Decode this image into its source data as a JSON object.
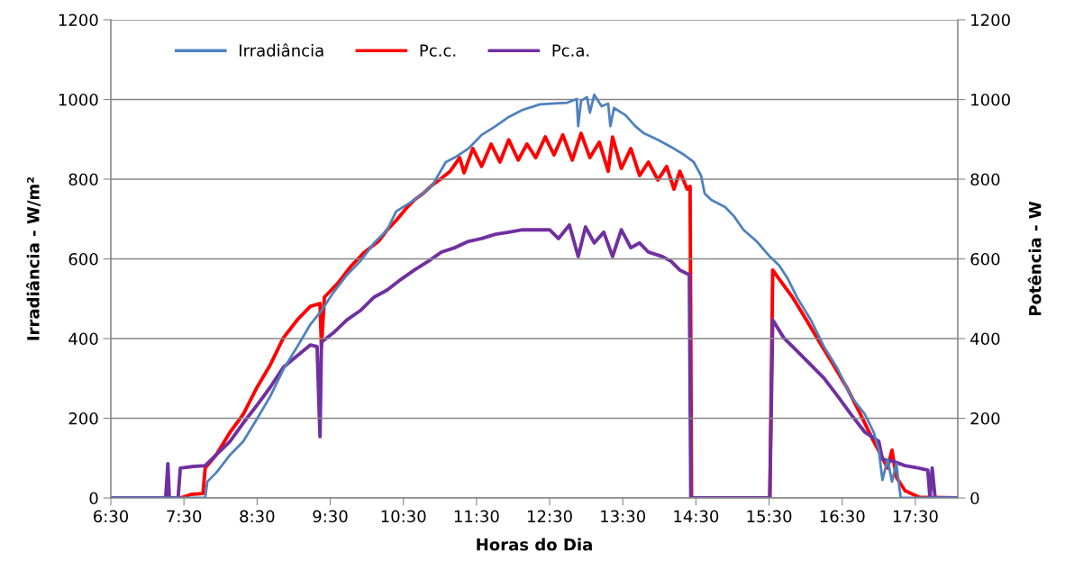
{
  "chart_data": {
    "type": "line",
    "xlabel": "Horas do Dia",
    "ylabel": "Irradiância - W/m²",
    "y2label": "Potência - W",
    "xlim": [
      6.5,
      18.08
    ],
    "xticks": [
      {
        "value": 6.5,
        "label": "6:30"
      },
      {
        "value": 7.5,
        "label": "7:30"
      },
      {
        "value": 8.5,
        "label": "8:30"
      },
      {
        "value": 9.5,
        "label": "9:30"
      },
      {
        "value": 10.5,
        "label": "10:30"
      },
      {
        "value": 11.5,
        "label": "11:30"
      },
      {
        "value": 12.5,
        "label": "12:30"
      },
      {
        "value": 13.5,
        "label": "13:30"
      },
      {
        "value": 14.5,
        "label": "14:30"
      },
      {
        "value": 15.5,
        "label": "15:30"
      },
      {
        "value": 16.5,
        "label": "16:30"
      },
      {
        "value": 17.5,
        "label": "17:30"
      }
    ],
    "ylim": [
      0,
      1200
    ],
    "yticks": [
      0,
      200,
      400,
      600,
      800,
      1000,
      1200
    ],
    "y2lim": [
      0,
      1200
    ],
    "y2ticks": [
      0,
      200,
      400,
      600,
      800,
      1000,
      1200
    ],
    "grid": "y",
    "legend": "top left",
    "marker": "none",
    "line_style": "solid",
    "series": [
      {
        "name": "Irradiância",
        "color": "#4f81bd",
        "x": [
          6.5,
          7.79,
          7.82,
          7.94,
          8.13,
          8.31,
          8.5,
          8.68,
          8.86,
          9.05,
          9.23,
          9.38,
          9.54,
          9.73,
          9.91,
          10.1,
          10.28,
          10.4,
          10.59,
          10.77,
          10.9,
          11.08,
          11.2,
          11.39,
          11.57,
          11.76,
          11.94,
          12.13,
          12.37,
          12.56,
          12.74,
          12.87,
          12.89,
          12.93,
          13.01,
          13.05,
          13.11,
          13.21,
          13.3,
          13.33,
          13.38,
          13.54,
          13.67,
          13.79,
          13.98,
          14.16,
          14.34,
          14.47,
          14.57,
          14.62,
          14.71,
          14.9,
          15.02,
          15.15,
          15.33,
          15.51,
          15.64,
          15.76,
          15.88,
          16.07,
          16.25,
          16.44,
          16.62,
          16.81,
          16.93,
          17.0,
          17.05,
          17.12,
          17.18,
          17.24,
          17.3,
          18.08
        ],
        "values": [
          0,
          0,
          41,
          63,
          108,
          142,
          199,
          255,
          323,
          380,
          436,
          470,
          515,
          560,
          594,
          640,
          673,
          719,
          741,
          764,
          786,
          843,
          854,
          877,
          911,
          933,
          956,
          974,
          988,
          990,
          992,
          1001,
          933,
          997,
          1006,
          967,
          1012,
          983,
          990,
          933,
          979,
          960,
          933,
          915,
          899,
          881,
          861,
          843,
          809,
          764,
          748,
          730,
          707,
          673,
          644,
          606,
          583,
          549,
          504,
          447,
          380,
          323,
          255,
          210,
          165,
          120,
          45,
          97,
          41,
          86,
          0,
          0
        ]
      },
      {
        "name": "Pc.c.",
        "color": "#ff0000",
        "axis": "y2",
        "x": [
          6.5,
          7.45,
          7.6,
          7.76,
          7.79,
          7.94,
          8.13,
          8.31,
          8.5,
          8.68,
          8.86,
          9.05,
          9.23,
          9.36,
          9.38,
          9.42,
          9.6,
          9.79,
          9.97,
          10.16,
          10.28,
          10.4,
          10.53,
          10.65,
          10.77,
          10.9,
          11.02,
          11.14,
          11.27,
          11.33,
          11.45,
          11.57,
          11.7,
          11.82,
          11.94,
          12.07,
          12.19,
          12.31,
          12.44,
          12.56,
          12.68,
          12.81,
          12.93,
          13.05,
          13.18,
          13.3,
          13.36,
          13.48,
          13.61,
          13.73,
          13.85,
          13.98,
          14.1,
          14.2,
          14.28,
          14.38,
          14.42,
          14.44,
          15.51,
          15.55,
          15.64,
          15.82,
          16.01,
          16.19,
          16.38,
          16.56,
          16.75,
          16.93,
          17.03,
          17.12,
          17.18,
          17.24,
          17.36,
          17.55,
          18.08
        ],
        "values": [
          0,
          0,
          9,
          11,
          75,
          108,
          165,
          210,
          278,
          334,
          402,
          447,
          481,
          488,
          380,
          504,
          538,
          583,
          617,
          644,
          673,
          696,
          725,
          748,
          764,
          786,
          802,
          820,
          854,
          816,
          877,
          832,
          888,
          843,
          899,
          848,
          888,
          854,
          906,
          861,
          911,
          848,
          915,
          854,
          893,
          820,
          906,
          827,
          877,
          809,
          843,
          798,
          832,
          775,
          820,
          775,
          782,
          0,
          0,
          572,
          549,
          504,
          447,
          391,
          334,
          278,
          210,
          142,
          108,
          75,
          120,
          52,
          18,
          2,
          0
        ]
      },
      {
        "name": "Pc.a.",
        "color": "#7030a0",
        "axis": "y2",
        "x": [
          6.5,
          7.25,
          7.28,
          7.3,
          7.42,
          7.45,
          7.63,
          7.79,
          7.94,
          8.13,
          8.31,
          8.5,
          8.68,
          8.86,
          9.05,
          9.23,
          9.32,
          9.36,
          9.38,
          9.54,
          9.73,
          9.91,
          10.1,
          10.28,
          10.47,
          10.65,
          10.84,
          11.02,
          11.2,
          11.39,
          11.57,
          11.76,
          11.94,
          12.13,
          12.31,
          12.5,
          12.62,
          12.77,
          12.89,
          12.99,
          13.11,
          13.24,
          13.36,
          13.48,
          13.61,
          13.73,
          13.85,
          14.04,
          14.16,
          14.28,
          14.41,
          14.43,
          15.51,
          15.55,
          15.7,
          15.88,
          16.07,
          16.25,
          16.44,
          16.62,
          16.81,
          17.0,
          17.05,
          17.18,
          17.36,
          17.55,
          17.67,
          17.7,
          17.73,
          17.77,
          18.08
        ],
        "values": [
          0,
          0,
          86,
          0,
          0,
          75,
          79,
          81,
          108,
          142,
          188,
          233,
          278,
          328,
          357,
          384,
          380,
          154,
          391,
          414,
          447,
          470,
          504,
          522,
          549,
          572,
          594,
          617,
          628,
          644,
          651,
          662,
          667,
          673,
          673,
          673,
          651,
          685,
          606,
          680,
          640,
          667,
          606,
          673,
          628,
          640,
          617,
          606,
          594,
          572,
          560,
          0,
          0,
          447,
          402,
          369,
          334,
          301,
          255,
          210,
          165,
          142,
          97,
          93,
          81,
          75,
          70,
          0,
          75,
          0,
          0
        ]
      }
    ]
  }
}
